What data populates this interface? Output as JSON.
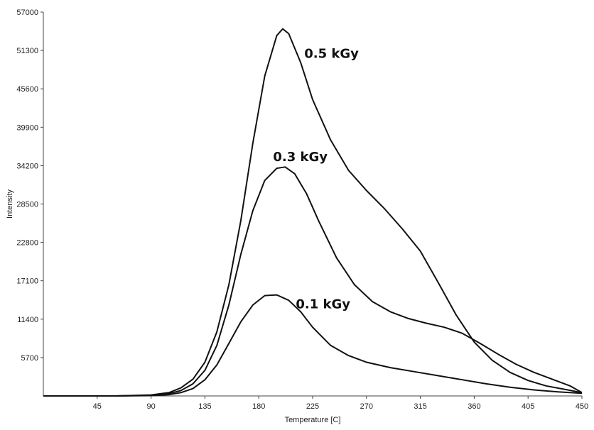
{
  "chart_data": {
    "type": "line",
    "xlabel": "Temperature [C]",
    "ylabel": "Intensity",
    "xlim": [
      0,
      450
    ],
    "ylim": [
      0,
      57000
    ],
    "x_ticks": [
      45,
      90,
      135,
      180,
      225,
      270,
      315,
      360,
      405,
      450
    ],
    "y_ticks": [
      5700,
      11400,
      17100,
      22800,
      28500,
      34200,
      39900,
      45600,
      51300,
      57000
    ],
    "grid": false,
    "series": [
      {
        "name": "0.5 kGy",
        "x": [
          0,
          60,
          90,
          105,
          115,
          125,
          135,
          145,
          155,
          165,
          175,
          185,
          195,
          200,
          205,
          215,
          225,
          240,
          255,
          270,
          285,
          300,
          315,
          330,
          345,
          360,
          375,
          390,
          405,
          420,
          435,
          450
        ],
        "y": [
          0,
          0,
          150,
          500,
          1200,
          2500,
          5000,
          9500,
          16500,
          26000,
          37500,
          47500,
          53500,
          54500,
          53800,
          49500,
          44000,
          38000,
          33500,
          30500,
          27800,
          24800,
          21500,
          16800,
          12000,
          8000,
          5300,
          3500,
          2300,
          1500,
          1000,
          500
        ]
      },
      {
        "name": "0.3 kGy",
        "x": [
          0,
          60,
          90,
          105,
          115,
          125,
          135,
          145,
          155,
          165,
          175,
          185,
          195,
          202,
          210,
          220,
          230,
          245,
          260,
          275,
          290,
          305,
          320,
          335,
          350,
          365,
          380,
          395,
          410,
          425,
          440,
          450
        ],
        "y": [
          0,
          0,
          100,
          350,
          800,
          1800,
          3800,
          7500,
          13500,
          21000,
          27500,
          32000,
          33800,
          34000,
          33000,
          30000,
          26000,
          20500,
          16500,
          14000,
          12500,
          11500,
          10800,
          10200,
          9300,
          7800,
          6200,
          4700,
          3500,
          2500,
          1500,
          500
        ]
      },
      {
        "name": "0.1 kGy",
        "x": [
          0,
          60,
          90,
          105,
          115,
          125,
          135,
          145,
          155,
          165,
          175,
          185,
          195,
          205,
          215,
          225,
          240,
          255,
          270,
          290,
          310,
          330,
          350,
          370,
          390,
          410,
          430,
          450
        ],
        "y": [
          0,
          0,
          50,
          200,
          500,
          1100,
          2400,
          4600,
          7800,
          11000,
          13500,
          14900,
          15000,
          14200,
          12500,
          10200,
          7500,
          6000,
          5000,
          4200,
          3600,
          3000,
          2400,
          1800,
          1300,
          900,
          600,
          400
        ]
      }
    ],
    "annotations": [
      {
        "text": "0.5 kGy",
        "x": 218,
        "y": 50200
      },
      {
        "text": "0.3 kGy",
        "x": 192,
        "y": 34900
      },
      {
        "text": "0.1 kGy",
        "x": 211,
        "y": 13000
      }
    ]
  }
}
